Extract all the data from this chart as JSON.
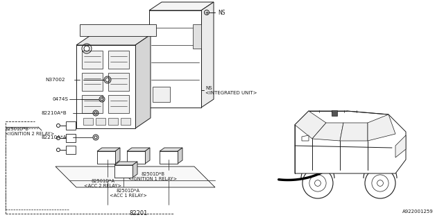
{
  "bg_color": "#ffffff",
  "line_color": "#1a1a1a",
  "text_color": "#1a1a1a",
  "part_number_bottom": "A922001259",
  "labels": {
    "NS_top": "NS",
    "NS_integrated": "NS\n<INTEGRATED UNIT>",
    "N37002": "N37002",
    "0474S": "0474S",
    "82210A_B": "82210A*B",
    "82501D_B_top": "82501D*B\n<IGNITION 2 RELAY>",
    "82210A_A": "82210A*A",
    "82501D_A_left": "82501D*A\n<ACC 2 RELAY>",
    "82501D_B_bot": "82501D*B\n<IGNITION 1 RELAY>",
    "82501D_A_bot": "82501D*A\n<ACC 1 RELAY>",
    "82201": "82201"
  },
  "figsize": [
    6.4,
    3.2
  ],
  "dpi": 100
}
